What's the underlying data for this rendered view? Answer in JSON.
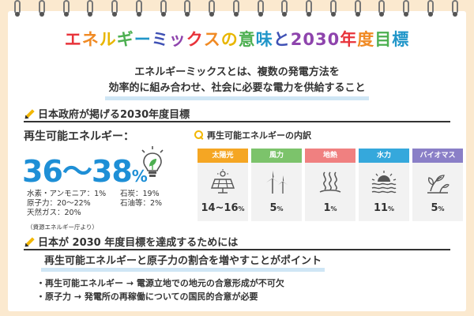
{
  "title": {
    "segments": [
      {
        "text": "エ",
        "color": "#e8333a"
      },
      {
        "text": "ネ",
        "color": "#f08a24"
      },
      {
        "text": "ル",
        "color": "#e8b600"
      },
      {
        "text": "ギ",
        "color": "#4caf50"
      },
      {
        "text": "ー",
        "color": "#2196c9"
      },
      {
        "text": "ミ",
        "color": "#3f51b5"
      },
      {
        "text": "ッ",
        "color": "#8e44ad"
      },
      {
        "text": "ク",
        "color": "#e8333a"
      },
      {
        "text": "ス",
        "color": "#f08a24"
      },
      {
        "text": "の",
        "color": "#e8b600"
      },
      {
        "text": "意",
        "color": "#4caf50"
      },
      {
        "text": "味",
        "color": "#2196c9"
      },
      {
        "text": "と",
        "color": "#3f51b5"
      },
      {
        "text": "2030",
        "color": "#8e44ad"
      },
      {
        "text": "年",
        "color": "#e8333a"
      },
      {
        "text": "度",
        "color": "#f08a24"
      },
      {
        "text": "目",
        "color": "#4caf50"
      },
      {
        "text": "標",
        "color": "#2196c9"
      }
    ]
  },
  "intro": {
    "line1": "エネルギーミックスとは、複数の発電方法を",
    "line2": "効率的に組み合わせ、社会に必要な電力を供給すること"
  },
  "section1": {
    "heading": "日本政府が掲げる2030年度目標",
    "renewable_label": "再生可能エネルギー：",
    "renewable_value": "36～38",
    "renewable_unit": "%",
    "mix_left": [
      "水素・アンモニア：1%",
      "原子力：20～22%",
      "天然ガス：20%"
    ],
    "mix_right": [
      "石炭：19%",
      "石油等：2%"
    ],
    "source": "（資源エネルギー庁より）"
  },
  "breakdown": {
    "title": "再生可能エネルギーの内訳",
    "items": [
      {
        "label": "太陽光",
        "value": "14~16",
        "unit": "%",
        "color": "#f5a623",
        "icon": "solar-panel-icon"
      },
      {
        "label": "風力",
        "value": "5",
        "unit": "%",
        "color": "#7cc36b",
        "icon": "wind-turbine-icon"
      },
      {
        "label": "地熱",
        "value": "1",
        "unit": "%",
        "color": "#f08080",
        "icon": "geothermal-icon"
      },
      {
        "label": "水力",
        "value": "11",
        "unit": "%",
        "color": "#35a8dc",
        "icon": "hydro-icon"
      },
      {
        "label": "バイオマス",
        "value": "5",
        "unit": "%",
        "color": "#8a7fc7",
        "icon": "biomass-icon"
      }
    ]
  },
  "section2": {
    "heading": "日本が 2030 年度目標を達成するためには",
    "subheading": "再生可能エネルギーと原子力の割合を増やすことがポイント",
    "bullets": [
      "・再生可能エネルギー → 電源立地での地元の合意形成が不可欠",
      "・原子力 → 発電所の再稼働についての国民的合意が必要"
    ]
  }
}
